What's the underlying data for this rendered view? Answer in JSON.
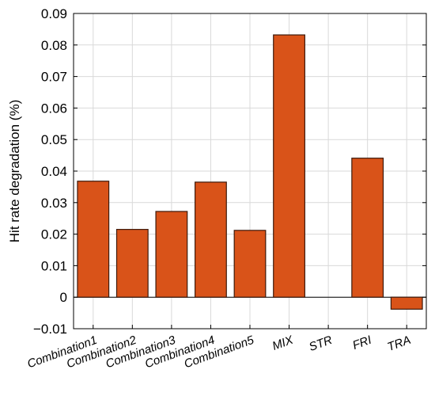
{
  "chart_data": {
    "type": "bar",
    "title": "",
    "xlabel": "",
    "ylabel": "Hit rate degradation (%)",
    "categories": [
      "Combination1",
      "Combination2",
      "Combination3",
      "Combination4",
      "Combination5",
      "MIX",
      "STR",
      "FRI",
      "TRA"
    ],
    "values": [
      0.0368,
      0.0215,
      0.0272,
      0.0365,
      0.0212,
      0.0832,
      0.0,
      0.0441,
      -0.0038
    ],
    "ylim": [
      -0.01,
      0.09
    ],
    "yticks": [
      -0.01,
      0,
      0.01,
      0.02,
      0.03,
      0.04,
      0.05,
      0.06,
      0.07,
      0.08,
      0.09
    ],
    "ytick_labels": [
      "−0.01",
      "0",
      "0.01",
      "0.02",
      "0.03",
      "0.04",
      "0.05",
      "0.06",
      "0.07",
      "0.08",
      "0.09"
    ],
    "grid": true,
    "legend": "none",
    "bar_color": "#D95319",
    "bar_edge_color": "#3d1a0c"
  }
}
